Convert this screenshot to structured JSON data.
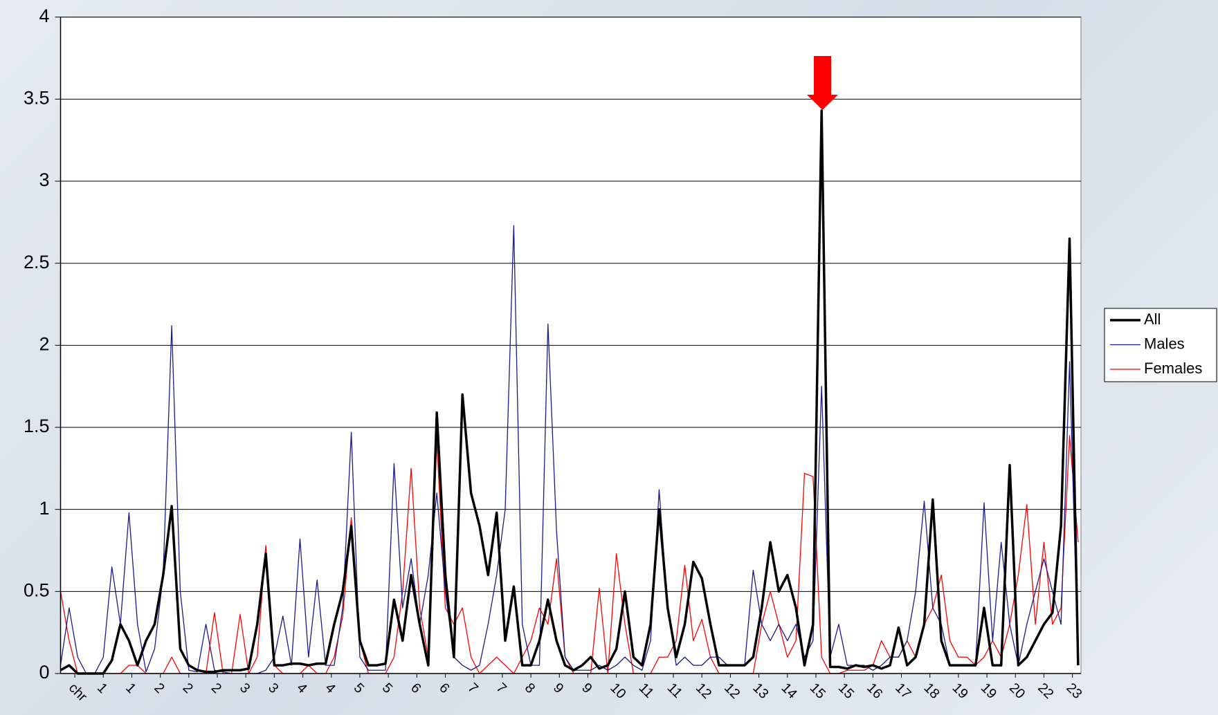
{
  "chart_data": {
    "type": "line",
    "x": [
      0,
      3,
      6,
      9,
      12,
      15,
      18,
      21,
      24,
      27,
      30,
      33,
      36,
      39,
      42,
      45,
      48,
      51,
      54,
      57,
      60,
      63,
      66,
      69,
      72,
      75,
      78,
      81,
      84,
      87,
      90,
      93,
      96,
      99,
      102,
      105,
      108,
      111,
      114,
      117,
      120,
      123,
      126,
      129,
      132,
      135,
      138,
      141,
      144,
      147,
      150,
      153,
      156,
      159,
      162,
      165,
      168,
      171,
      174,
      177,
      180,
      183,
      186,
      189,
      192,
      195,
      198,
      201,
      204,
      207,
      210,
      213,
      216,
      219,
      222,
      225,
      228,
      231,
      234,
      237,
      240,
      243,
      246,
      249,
      252,
      255,
      258,
      261,
      264,
      267,
      270,
      273,
      276,
      279,
      282,
      285,
      288,
      291,
      294,
      297,
      300,
      303,
      306,
      309,
      312,
      315,
      318,
      321,
      324,
      327,
      330,
      333,
      336,
      339,
      342,
      345,
      348,
      351,
      354,
      357
    ],
    "series": [
      {
        "name": "All",
        "color": "#000000",
        "values": [
          0.02,
          0.05,
          0,
          0,
          0,
          0,
          0.08,
          0.3,
          0.2,
          0.05,
          0.2,
          0.3,
          0.6,
          1.02,
          0.15,
          0.05,
          0.02,
          0.01,
          0.01,
          0.02,
          0.02,
          0.02,
          0.03,
          0.3,
          0.73,
          0.05,
          0.05,
          0.06,
          0.06,
          0.05,
          0.06,
          0.06,
          0.3,
          0.5,
          0.9,
          0.2,
          0.05,
          0.05,
          0.06,
          0.45,
          0.2,
          0.6,
          0.3,
          0.05,
          1.59,
          0.6,
          0.1,
          1.7,
          1.1,
          0.9,
          0.6,
          0.98,
          0.2,
          0.53,
          0.05,
          0.05,
          0.2,
          0.45,
          0.2,
          0.05,
          0.02,
          0.05,
          0.1,
          0.03,
          0.05,
          0.15,
          0.5,
          0.1,
          0.05,
          0.3,
          1.0,
          0.4,
          0.1,
          0.3,
          0.68,
          0.58,
          0.3,
          0.05,
          0.05,
          0.05,
          0.05,
          0.1,
          0.4,
          0.8,
          0.5,
          0.6,
          0.4,
          0.05,
          0.3,
          3.43,
          0.04,
          0.04,
          0.03,
          0.05,
          0.04,
          0.05,
          0.03,
          0.05,
          0.28,
          0.05,
          0.1,
          0.3,
          1.06,
          0.2,
          0.05,
          0.05,
          0.05,
          0.05,
          0.4,
          0.05,
          0.05,
          1.27,
          0.05,
          0.1,
          0.2,
          0.3,
          0.37,
          0.9,
          2.65,
          0.05
        ]
      },
      {
        "name": "Males",
        "color": "#1a1a8c",
        "values": [
          0.05,
          0.4,
          0.1,
          0,
          0,
          0.1,
          0.65,
          0.3,
          0.98,
          0.3,
          0.01,
          0.15,
          0.6,
          2.12,
          0.5,
          0.02,
          0.01,
          0.3,
          0.02,
          0.01,
          0,
          0,
          0,
          0,
          0.02,
          0.1,
          0.35,
          0.05,
          0.82,
          0.1,
          0.57,
          0.05,
          0.05,
          0.4,
          1.47,
          0.1,
          0.02,
          0.02,
          0.02,
          1.28,
          0.4,
          0.7,
          0.3,
          0.6,
          1.1,
          0.5,
          0.1,
          0.05,
          0.02,
          0.05,
          0.3,
          0.6,
          1.0,
          2.73,
          0.3,
          0.05,
          0.05,
          2.13,
          0.87,
          0.1,
          0.02,
          0.02,
          0.02,
          0.05,
          0.02,
          0.05,
          0.1,
          0.05,
          0.02,
          0.2,
          1.12,
          0.4,
          0.05,
          0.1,
          0.05,
          0.05,
          0.1,
          0.1,
          0.05,
          0.05,
          0.05,
          0.63,
          0.3,
          0.2,
          0.3,
          0.2,
          0.3,
          0.1,
          0.2,
          1.75,
          0.1,
          0.3,
          0.05,
          0.05,
          0.05,
          0.02,
          0.05,
          0.1,
          0.1,
          0.2,
          0.5,
          1.05,
          0.4,
          0.3,
          0.05,
          0.05,
          0.05,
          0.05,
          1.04,
          0.2,
          0.8,
          0.3,
          0.05,
          0.3,
          0.5,
          0.7,
          0.5,
          0.3,
          1.9,
          0.05
        ]
      },
      {
        "name": "Females",
        "color": "#ff0000",
        "values": [
          0.5,
          0.2,
          0,
          0,
          0,
          0,
          0,
          0,
          0.05,
          0.05,
          0,
          0,
          0,
          0.1,
          0,
          0,
          0,
          0,
          0.37,
          0,
          0,
          0.36,
          0,
          0.1,
          0.78,
          0.05,
          0,
          0,
          0,
          0.05,
          0,
          0,
          0.1,
          0.35,
          0.95,
          0.2,
          0,
          0,
          0,
          0.1,
          0.5,
          1.25,
          0.4,
          0.1,
          1.42,
          0.4,
          0.3,
          0.4,
          0.1,
          0,
          0.05,
          0.1,
          0.05,
          0,
          0.1,
          0.2,
          0.4,
          0.3,
          0.7,
          0.1,
          0,
          0,
          0,
          0.52,
          0,
          0.73,
          0.3,
          0,
          0,
          0,
          0.1,
          0.1,
          0.2,
          0.66,
          0.2,
          0.33,
          0.1,
          0,
          0,
          0,
          0,
          0,
          0.3,
          0.5,
          0.3,
          0.1,
          0.2,
          1.22,
          1.2,
          0.1,
          0,
          0,
          0.02,
          0.02,
          0.02,
          0.05,
          0.2,
          0.1,
          0.1,
          0.2,
          0.1,
          0.3,
          0.4,
          0.6,
          0.2,
          0.1,
          0.1,
          0.05,
          0.1,
          0.2,
          0.1,
          0.3,
          0.6,
          1.03,
          0.3,
          0.8,
          0.3,
          0.4,
          1.45,
          0.8
        ]
      }
    ],
    "xlim": [
      0,
      358
    ],
    "xticks": [
      {
        "value": 5,
        "label": "chr"
      },
      {
        "value": 15,
        "label": "1"
      },
      {
        "value": 25,
        "label": "1"
      },
      {
        "value": 35,
        "label": "2"
      },
      {
        "value": 45,
        "label": "2"
      },
      {
        "value": 55,
        "label": "2"
      },
      {
        "value": 65,
        "label": "3"
      },
      {
        "value": 75,
        "label": "3"
      },
      {
        "value": 85,
        "label": "4"
      },
      {
        "value": 95,
        "label": "4"
      },
      {
        "value": 105,
        "label": "5"
      },
      {
        "value": 115,
        "label": "5"
      },
      {
        "value": 125,
        "label": "6"
      },
      {
        "value": 135,
        "label": "6"
      },
      {
        "value": 145,
        "label": "7"
      },
      {
        "value": 155,
        "label": "7"
      },
      {
        "value": 165,
        "label": "8"
      },
      {
        "value": 175,
        "label": "9"
      },
      {
        "value": 185,
        "label": "9"
      },
      {
        "value": 195,
        "label": "10"
      },
      {
        "value": 205,
        "label": "11"
      },
      {
        "value": 215,
        "label": "11"
      },
      {
        "value": 225,
        "label": "12"
      },
      {
        "value": 235,
        "label": "12"
      },
      {
        "value": 245,
        "label": "13"
      },
      {
        "value": 255,
        "label": "14"
      },
      {
        "value": 265,
        "label": "15"
      },
      {
        "value": 275,
        "label": "15"
      },
      {
        "value": 285,
        "label": "16"
      },
      {
        "value": 295,
        "label": "17"
      },
      {
        "value": 305,
        "label": "18"
      },
      {
        "value": 315,
        "label": "19"
      },
      {
        "value": 325,
        "label": "19"
      },
      {
        "value": 335,
        "label": "20"
      },
      {
        "value": 345,
        "label": "22"
      },
      {
        "value": 355,
        "label": "23"
      }
    ],
    "ylim": [
      0,
      4
    ],
    "yticks": [
      0,
      0.5,
      1,
      1.5,
      2,
      2.5,
      3,
      3.5,
      4
    ],
    "grid": true,
    "legend": "right"
  }
}
